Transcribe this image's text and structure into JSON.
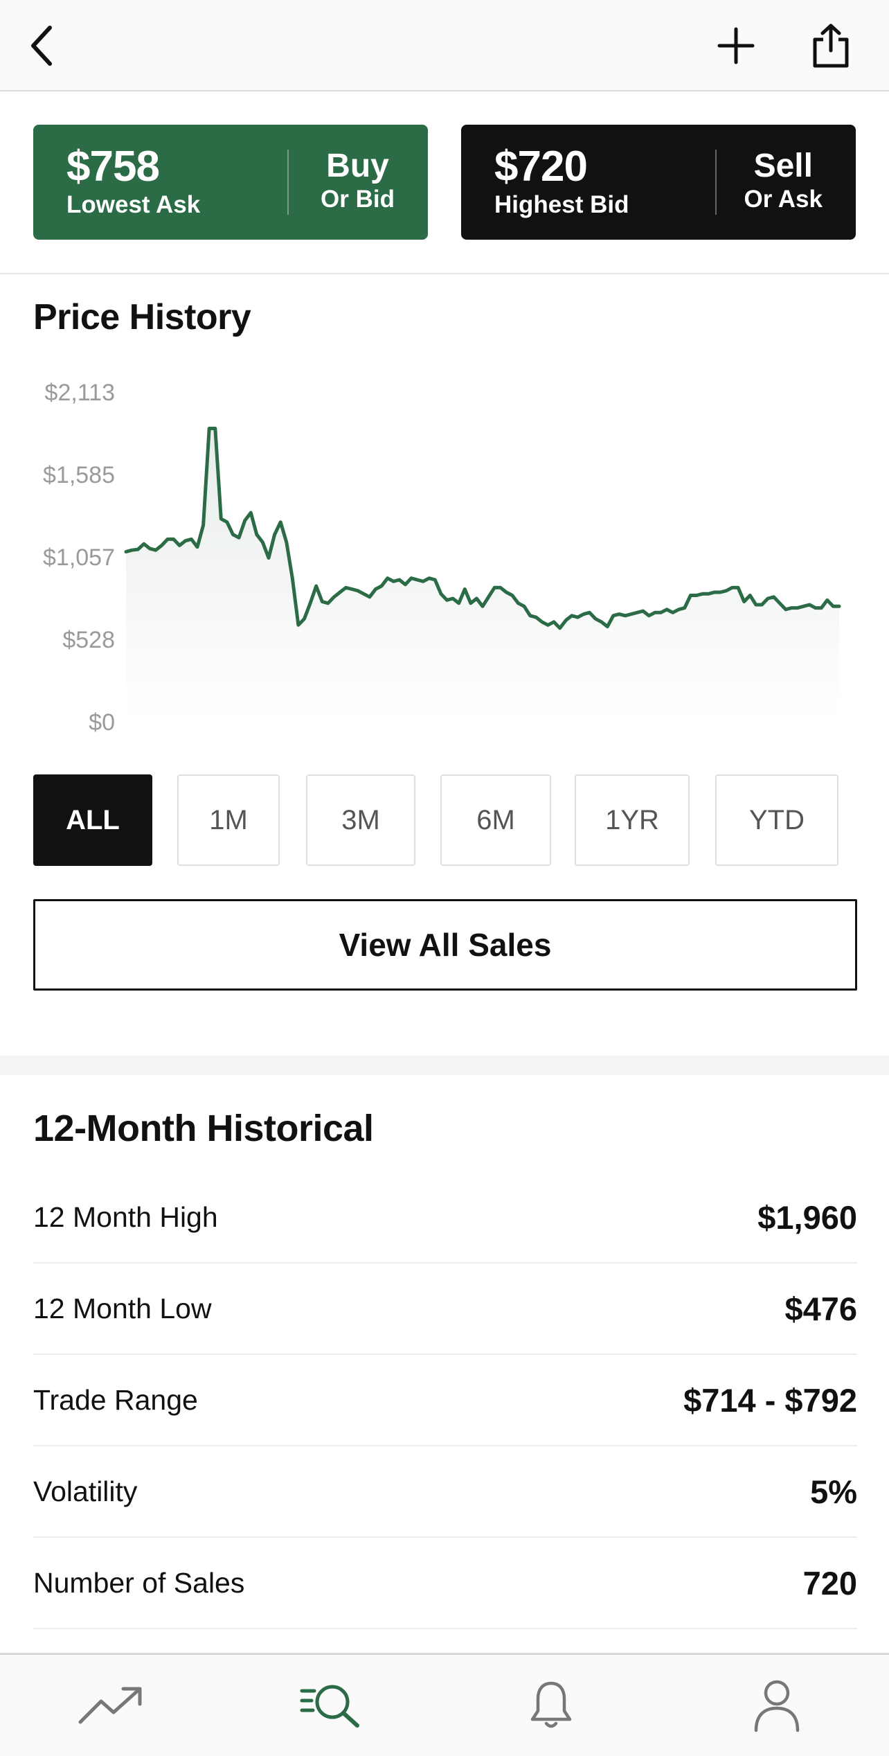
{
  "nav": {
    "back_icon": "chevron-left-icon",
    "add_icon": "plus-icon",
    "share_icon": "share-icon"
  },
  "offers": {
    "buy": {
      "price": "$758",
      "sub": "Lowest Ask",
      "action": "Buy",
      "alt": "Or Bid",
      "color": "#2b6b45"
    },
    "sell": {
      "price": "$720",
      "sub": "Highest Bid",
      "action": "Sell",
      "alt": "Or Ask",
      "color": "#111111"
    }
  },
  "price_history": {
    "title": "Price History",
    "y_ticks": [
      "$2,113",
      "$1,585",
      "$1,057",
      "$528",
      "$0"
    ]
  },
  "chart_data": {
    "type": "area",
    "title": "Price History",
    "ylim": [
      0,
      2113
    ],
    "y_tick_values": [
      2113,
      1585,
      1057,
      528,
      0
    ],
    "y_tick_labels": [
      "$2,113",
      "$1,585",
      "$1,057",
      "$528",
      "$0"
    ],
    "grid": false,
    "line_color": "#2b6b45",
    "series": [
      {
        "values": [
          1090,
          1100,
          1105,
          1140,
          1110,
          1100,
          1130,
          1170,
          1170,
          1130,
          1160,
          1170,
          1120,
          1260,
          1880,
          1880,
          1300,
          1280,
          1200,
          1180,
          1290,
          1340,
          1200,
          1150,
          1050,
          1200,
          1280,
          1150,
          920,
          620,
          660,
          760,
          870,
          770,
          760,
          800,
          830,
          860,
          850,
          840,
          820,
          800,
          850,
          870,
          920,
          900,
          910,
          880,
          920,
          910,
          900,
          920,
          910,
          820,
          780,
          790,
          760,
          850,
          760,
          790,
          740,
          800,
          860,
          860,
          830,
          810,
          760,
          740,
          680,
          670,
          640,
          620,
          640,
          600,
          650,
          680,
          670,
          690,
          700,
          660,
          640,
          610,
          680,
          690,
          680,
          690,
          700,
          710,
          680,
          700,
          700,
          720,
          700,
          720,
          730,
          810,
          810,
          820,
          820,
          830,
          830,
          840,
          860,
          860,
          770,
          810,
          750,
          750,
          790,
          800,
          760,
          720,
          730,
          730,
          740,
          750,
          730,
          730,
          780,
          740,
          740
        ]
      }
    ]
  },
  "ranges": {
    "items": [
      "ALL",
      "1M",
      "3M",
      "6M",
      "1YR",
      "YTD"
    ],
    "active": "ALL"
  },
  "view_all": {
    "label": "View All Sales"
  },
  "historical": {
    "title": "12-Month Historical",
    "rows": [
      {
        "label": "12 Month High",
        "value": "$1,960"
      },
      {
        "label": "12 Month Low",
        "value": "$476"
      },
      {
        "label": "Trade Range",
        "value": "$714 - $792"
      },
      {
        "label": "Volatility",
        "value": "5%"
      },
      {
        "label": "Number of Sales",
        "value": "720"
      }
    ]
  },
  "tabbar": {
    "items": [
      {
        "icon": "trending-up-icon"
      },
      {
        "icon": "search-icon",
        "active": true,
        "color": "#2b6b45"
      },
      {
        "icon": "bell-icon"
      },
      {
        "icon": "profile-icon"
      }
    ]
  }
}
